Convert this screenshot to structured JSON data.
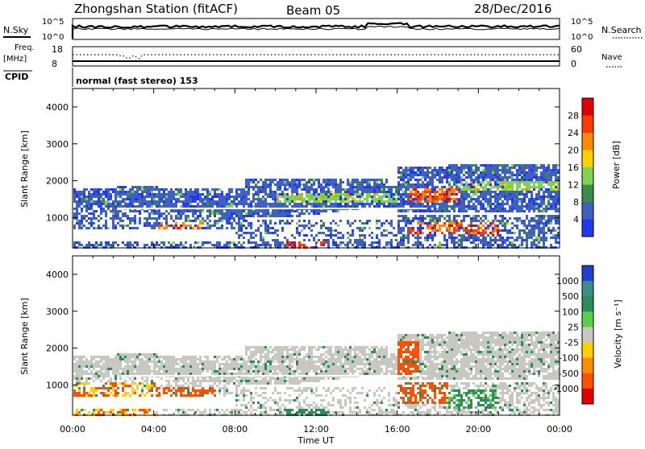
{
  "header": {
    "station": "Zhongshan Station (fitACF)",
    "beam": "Beam 05",
    "date": "28/Dec/2016"
  },
  "top_panels": {
    "nsky_label": "N.Sky",
    "nsearch_label": "N.Search",
    "nsky_ticks": [
      "10^5",
      "10^0"
    ],
    "nsearch_ticks": [
      "10^5",
      "10^0"
    ],
    "freq_label_1": "Freq.",
    "freq_label_2": "[MHz]",
    "freq_ticks": [
      "18",
      "8"
    ],
    "nave_label": "Nave",
    "nave_ticks": [
      "60",
      "0"
    ],
    "cpid_label": "CPID",
    "mode_text": "normal (fast stereo) 153"
  },
  "chart_data": [
    {
      "type": "heatmap",
      "name": "power",
      "ylabel": "Slant Range [km]",
      "ylim": [
        180,
        4500
      ],
      "y_ticks": [
        1000,
        2000,
        3000,
        4000
      ],
      "x_ticks_hours": [
        0,
        4,
        8,
        12,
        16,
        20,
        24
      ],
      "colorbar": {
        "label": "Power [dB]",
        "ticks": [
          "28",
          "24",
          "20",
          "16",
          "12",
          "8",
          "4"
        ],
        "colors": [
          "#e00000",
          "#ff3a00",
          "#ff8a00",
          "#ffd000",
          "#7fd34e",
          "#3c8c4c",
          "#4060c0",
          "#2038f0"
        ]
      }
    },
    {
      "type": "heatmap",
      "name": "velocity",
      "ylabel": "Slant Range [km]",
      "ylim": [
        180,
        4500
      ],
      "y_ticks": [
        1000,
        2000,
        3000,
        4000
      ],
      "x_ticks_hours": [
        0,
        4,
        8,
        12,
        16,
        20,
        24
      ],
      "colorbar": {
        "label": "Velocity [m s⁻¹]",
        "ticks": [
          "1000",
          "500",
          "100",
          "25",
          "-25",
          "-100",
          "-500",
          "-1000"
        ],
        "colors": [
          "#2040d0",
          "#3c8c8c",
          "#2e8b57",
          "#5ad04a",
          "#c8c8c0",
          "#ffd000",
          "#ff8c00",
          "#ff5000",
          "#e00000"
        ]
      }
    }
  ],
  "x_axis": {
    "tick_labels": [
      "00:00",
      "04:00",
      "08:00",
      "12:00",
      "16:00",
      "20:00",
      "00:00"
    ],
    "label": "Time UT"
  }
}
